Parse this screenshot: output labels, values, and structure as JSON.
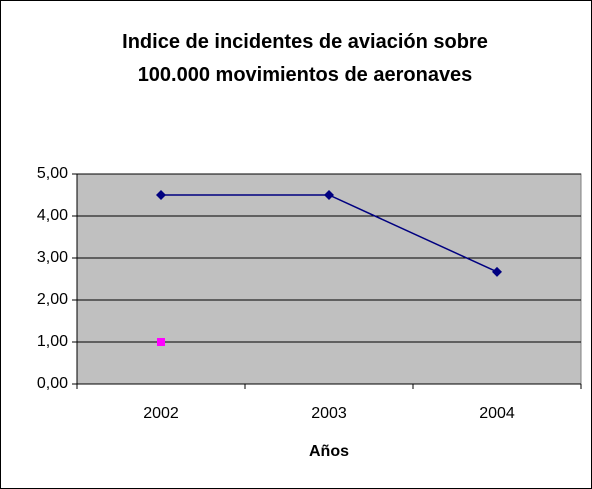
{
  "chart_data": {
    "type": "line",
    "title": "Indice de incidentes de aviación sobre 100.000 movimientos de aeronaves",
    "x_label": "Años",
    "categories": [
      "2002",
      "2003",
      "2004"
    ],
    "series": [
      {
        "color": "#000080",
        "marker": "diamond",
        "values": [
          4.5,
          4.5,
          2.67
        ]
      },
      {
        "color": "#ff00ff",
        "marker": "square",
        "values": [
          1.0,
          null,
          null
        ]
      }
    ],
    "ylim": [
      0,
      5
    ],
    "yticks": [
      {
        "value": 0,
        "label": "0,00"
      },
      {
        "value": 1,
        "label": "1,00"
      },
      {
        "value": 2,
        "label": "2,00"
      },
      {
        "value": 3,
        "label": "3,00"
      },
      {
        "value": 4,
        "label": "4,00"
      },
      {
        "value": 5,
        "label": "5,00"
      }
    ],
    "grid": true,
    "plot_background": "#c0c0c0"
  }
}
